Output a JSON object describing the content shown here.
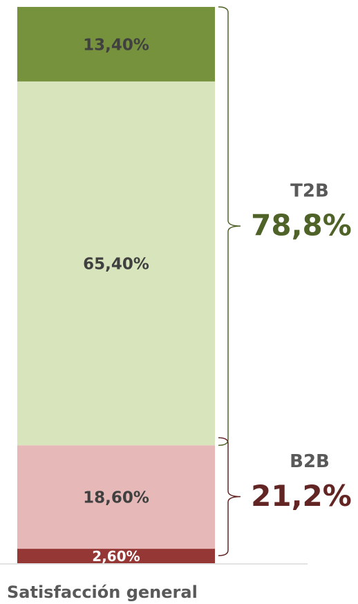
{
  "chart_data": {
    "type": "bar",
    "stacked": true,
    "categories": [
      "Satisfacción general"
    ],
    "ylim": [
      0,
      100
    ],
    "series": [
      {
        "name": null,
        "color": "#953735",
        "label_color": "#ffffff",
        "values": [
          2.6
        ],
        "value_labels": [
          "2,60%"
        ]
      },
      {
        "name": null,
        "color": "#e6b9b8",
        "label_color": "#404040",
        "values": [
          18.6
        ],
        "value_labels": [
          "18,60%"
        ]
      },
      {
        "name": null,
        "color": "#d7e4bc",
        "label_color": "#404040",
        "values": [
          65.4
        ],
        "value_labels": [
          "65,40%"
        ]
      },
      {
        "name": null,
        "color": "#76923c",
        "label_color": "#404040",
        "values": [
          13.4
        ],
        "value_labels": [
          "13,40%"
        ]
      }
    ],
    "annotations": [
      {
        "label": "T2B",
        "value": 78.8,
        "value_label": "78,8%",
        "color": "#4f6228",
        "side": "top"
      },
      {
        "label": "B2B",
        "value": 21.2,
        "value_label": "21,2%",
        "color": "#632523",
        "side": "bottom"
      }
    ]
  }
}
